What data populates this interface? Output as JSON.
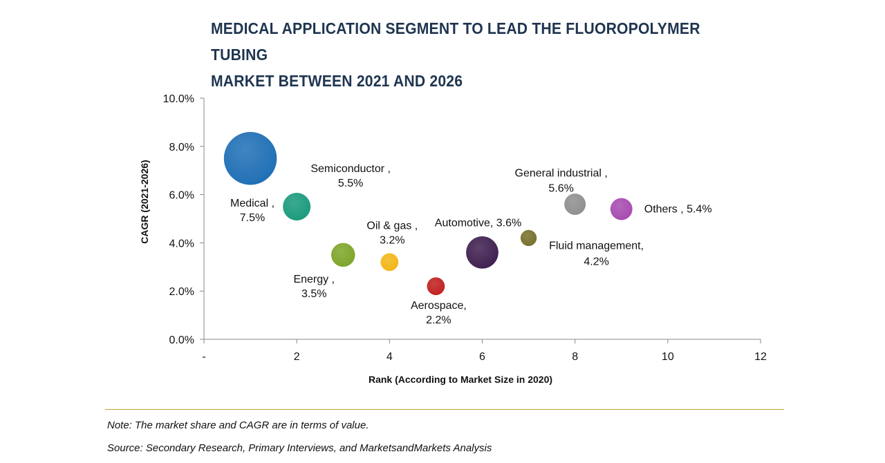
{
  "title": {
    "line1": "MEDICAL APPLICATION SEGMENT TO LEAD THE FLUOROPOLYMER TUBING",
    "line2": "MARKET BETWEEN 2021 AND 2026"
  },
  "chart_data": {
    "type": "bubble",
    "xlabel": "Rank (According to Market Size in 2020)",
    "ylabel": "CAGR (2021-2026)",
    "xlim": [
      0,
      12
    ],
    "ylim": [
      0,
      10
    ],
    "x_ticks": [
      0,
      2,
      4,
      6,
      8,
      10,
      12
    ],
    "x_tick_labels": [
      "-",
      "2",
      "4",
      "6",
      "8",
      "10",
      "12"
    ],
    "y_ticks": [
      0,
      2,
      4,
      6,
      8,
      10
    ],
    "y_tick_labels": [
      "0.0%",
      "2.0%",
      "4.0%",
      "6.0%",
      "8.0%",
      "10.0%"
    ],
    "points": [
      {
        "name": "Medical",
        "x": 1,
        "y": 7.5,
        "rel_size": 1.0,
        "color": "#1f6fb5",
        "label_lines": [
          "Medical ,",
          "7.5%"
        ]
      },
      {
        "name": "Semiconductor",
        "x": 2,
        "y": 5.5,
        "rel_size": 0.27,
        "color": "#1a9a7c",
        "label_lines": [
          "Semiconductor ,",
          "5.5%"
        ]
      },
      {
        "name": "Energy",
        "x": 3,
        "y": 3.5,
        "rel_size": 0.2,
        "color": "#7ea52a",
        "label_lines": [
          "Energy ,",
          "3.5%"
        ]
      },
      {
        "name": "Oil & gas",
        "x": 4,
        "y": 3.2,
        "rel_size": 0.11,
        "color": "#f3b617",
        "label_lines": [
          "Oil & gas ,",
          "3.2%"
        ]
      },
      {
        "name": "Aerospace",
        "x": 5,
        "y": 2.2,
        "rel_size": 0.11,
        "color": "#c0211f",
        "label_lines": [
          "Aerospace,",
          "2.2%"
        ]
      },
      {
        "name": "Automotive",
        "x": 6,
        "y": 3.6,
        "rel_size": 0.37,
        "color": "#3f1f4f",
        "label_lines": [
          "Automotive, 3.6%"
        ]
      },
      {
        "name": "Fluid management",
        "x": 7,
        "y": 4.2,
        "rel_size": 0.09,
        "color": "#77702c",
        "label_lines": [
          "Fluid management,",
          "4.2%"
        ]
      },
      {
        "name": "General industrial",
        "x": 8,
        "y": 5.6,
        "rel_size": 0.16,
        "color": "#8f8f8f",
        "label_lines": [
          "General industrial ,",
          "5.6%"
        ]
      },
      {
        "name": "Others",
        "x": 9,
        "y": 5.4,
        "rel_size": 0.17,
        "color": "#a64bb0",
        "label_lines": [
          "Others , 5.4%"
        ]
      }
    ]
  },
  "footer": {
    "note": "Note: The market share and CAGR are in terms of value.",
    "source": "Source: Secondary Research, Primary Interviews, and MarketsandMarkets Analysis"
  }
}
